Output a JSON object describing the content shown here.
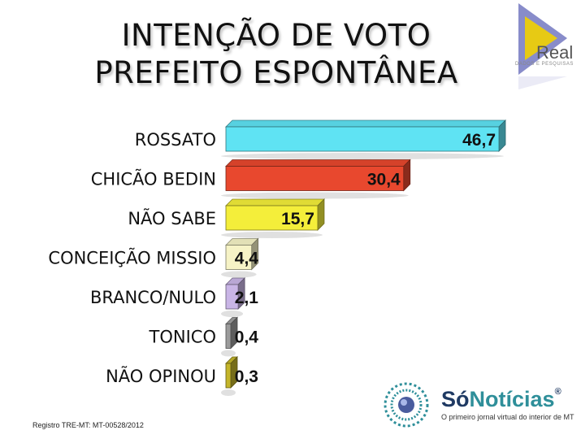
{
  "title_line1": "INTENÇÃO DE VOTO",
  "title_line2": "PREFEITO ESPONTÂNEA",
  "logo": {
    "name": "Real",
    "subtitle": "DADOS E PESQUISAS",
    "colors": {
      "purple": "#7b7fc4",
      "yellow": "#f2d000"
    }
  },
  "footer": {
    "registro": "Registro TRE-MT: MT-00528/2012",
    "brand_part1": "Só",
    "brand_part2": "Notícias",
    "brand_mark": "®",
    "tagline": "O primeiro jornal virtual do interior de MT"
  },
  "chart_data": {
    "type": "bar",
    "orientation": "horizontal",
    "categories": [
      "ROSSATO",
      "CHICÃO BEDIN",
      "NÃO SABE",
      "CONCEIÇÃO MISSIO",
      "BRANCO/NULO",
      "TONICO",
      "NÃO OPINOU"
    ],
    "values": [
      46.7,
      30.4,
      15.7,
      4.4,
      2.1,
      0.4,
      0.3
    ],
    "value_labels": [
      "46,7",
      "30,4",
      "15,7",
      "4,4",
      "2,1",
      "0,4",
      "0,3"
    ],
    "colors": [
      "#5fe3f3",
      "#e8482e",
      "#f4ee3a",
      "#f6f3c6",
      "#c9b5e6",
      "#9b9b9b",
      "#c4b52a"
    ],
    "title": "INTENÇÃO DE VOTO PREFEITO ESPONTÂNEA",
    "xlim": [
      0,
      46.7
    ],
    "grid": false,
    "legend": "none"
  }
}
